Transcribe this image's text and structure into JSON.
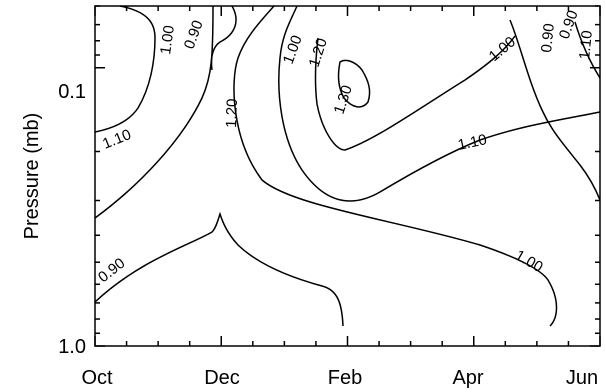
{
  "chart_data": {
    "type": "contour",
    "title": "",
    "xlabel": "",
    "ylabel": "Pressure (mb)",
    "x_ticks": [
      "Oct",
      "Dec",
      "Feb",
      "Apr",
      "Jun"
    ],
    "y_scale": "log",
    "y_ticks": [
      {
        "value": 0.1,
        "label": "0.1"
      },
      {
        "value": 1.0,
        "label": "1.0"
      }
    ],
    "y_range": [
      1.0,
      0.06
    ],
    "x_range_months": [
      "Oct",
      "Jun"
    ],
    "grid": false,
    "contour_levels": [
      0.9,
      1.0,
      1.1,
      1.2,
      1.3
    ],
    "contour_labels": [
      "0.90",
      "1.00",
      "0.90",
      "1.10",
      "1.20",
      "1.00",
      "1.30",
      "1.20",
      "1.00",
      "0.90",
      "1.10",
      "1.10",
      "0.90",
      "1.00"
    ]
  }
}
